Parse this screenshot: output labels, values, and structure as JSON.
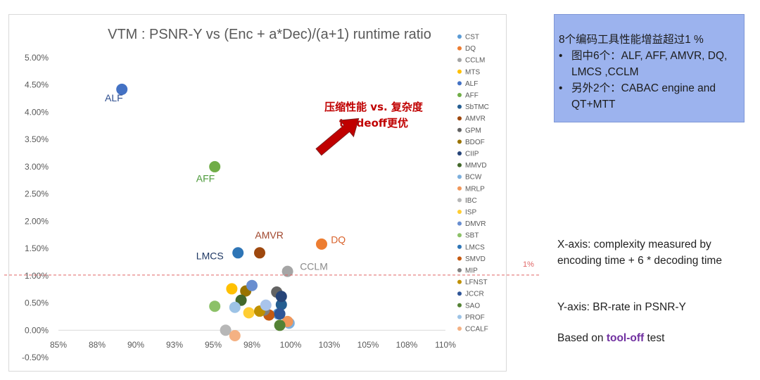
{
  "chart_data": {
    "type": "scatter",
    "title": "VTM : PSNR-Y vs (Enc + a*Dec)/(a+1) runtime ratio",
    "xlabel": "",
    "ylabel": "",
    "xlim": [
      85,
      110
    ],
    "ylim": [
      -0.5,
      5.0
    ],
    "x_ticks": [
      85,
      87.5,
      90,
      92.5,
      95,
      97.5,
      100,
      102.5,
      105,
      107.5,
      110
    ],
    "x_tick_labels": [
      "85%",
      "88%",
      "90%",
      "93%",
      "95%",
      "98%",
      "100%",
      "103%",
      "105%",
      "108%",
      "110%"
    ],
    "y_ticks": [
      -0.5,
      0,
      0.5,
      1.0,
      1.5,
      2.0,
      2.5,
      3.0,
      3.5,
      4.0,
      4.5,
      5.0
    ],
    "y_tick_labels": [
      "-0.50%",
      "0.00%",
      "0.50%",
      "1.00%",
      "1.50%",
      "2.00%",
      "2.50%",
      "3.00%",
      "3.50%",
      "4.00%",
      "4.50%",
      "5.00%"
    ],
    "grid": false,
    "legend_position": "right",
    "reference_line": {
      "y": 1.0,
      "label": "1%",
      "color": "#e06666"
    },
    "series": [
      {
        "name": "CST",
        "color": "#5b9bd5",
        "x": 99.2,
        "y": 0.3
      },
      {
        "name": "DQ",
        "color": "#ed7d31",
        "x": 102.0,
        "y": 1.58
      },
      {
        "name": "CCLM",
        "color": "#a5a5a5",
        "x": 99.8,
        "y": 1.08
      },
      {
        "name": "MTS",
        "color": "#ffc000",
        "x": 96.2,
        "y": 0.76
      },
      {
        "name": "ALF",
        "color": "#4472c4",
        "x": 89.1,
        "y": 4.42
      },
      {
        "name": "AFF",
        "color": "#70ad47",
        "x": 95.1,
        "y": 3.0
      },
      {
        "name": "SbTMC",
        "color": "#255e91",
        "x": 99.4,
        "y": 0.47
      },
      {
        "name": "AMVR",
        "color": "#9e480e",
        "x": 98.0,
        "y": 1.42
      },
      {
        "name": "GPM",
        "color": "#636363",
        "x": 99.1,
        "y": 0.7
      },
      {
        "name": "BDOF",
        "color": "#997300",
        "x": 97.1,
        "y": 0.72
      },
      {
        "name": "CIIP",
        "color": "#264478",
        "x": 99.4,
        "y": 0.62
      },
      {
        "name": "MMVD",
        "color": "#43682b",
        "x": 96.8,
        "y": 0.55
      },
      {
        "name": "BCW",
        "color": "#7cafdd",
        "x": 99.9,
        "y": 0.13
      },
      {
        "name": "MRLP",
        "color": "#f1975a",
        "x": 99.8,
        "y": 0.16
      },
      {
        "name": "IBC",
        "color": "#b7b7b7",
        "x": 95.8,
        "y": 0.0
      },
      {
        "name": "ISP",
        "color": "#ffcd33",
        "x": 97.3,
        "y": 0.32
      },
      {
        "name": "DMVR",
        "color": "#698ed0",
        "x": 97.5,
        "y": 0.82
      },
      {
        "name": "SBT",
        "color": "#8cc168",
        "x": 95.1,
        "y": 0.44
      },
      {
        "name": "LMCS",
        "color": "#2e75b6",
        "x": 96.6,
        "y": 1.42
      },
      {
        "name": "SMVD",
        "color": "#c55a11",
        "x": 98.6,
        "y": 0.28
      },
      {
        "name": "MIP",
        "color": "#7f7f7f",
        "x": 98.3,
        "y": 0.37
      },
      {
        "name": "LFNST",
        "color": "#bf9000",
        "x": 98.0,
        "y": 0.35
      },
      {
        "name": "JCCR",
        "color": "#2f5597",
        "x": 99.3,
        "y": 0.3
      },
      {
        "name": "SAO",
        "color": "#548235",
        "x": 99.3,
        "y": 0.09
      },
      {
        "name": "PROF",
        "color": "#9dc3e6",
        "x": 96.4,
        "y": 0.42
      },
      {
        "name": "CCALF",
        "color": "#f4b183",
        "x": 96.4,
        "y": -0.1
      },
      {
        "name": "",
        "color": "#a9c4eb",
        "x": 98.4,
        "y": 0.46
      }
    ],
    "point_labels": [
      {
        "text": "ALF",
        "color": "#2f4f8f",
        "x": 88.0,
        "y": 4.2
      },
      {
        "text": "AFF",
        "color": "#4c9a3a",
        "x": 93.9,
        "y": 2.72
      },
      {
        "text": "AMVR",
        "color": "#a0462c",
        "x": 97.7,
        "y": 1.68
      },
      {
        "text": "DQ",
        "color": "#d9622b",
        "x": 102.6,
        "y": 1.6
      },
      {
        "text": "LMCS",
        "color": "#1f3864",
        "x": 93.9,
        "y": 1.3
      },
      {
        "text": "CCLM",
        "color": "#8a8a8a",
        "x": 100.6,
        "y": 1.11
      }
    ],
    "annotation": {
      "line1": "压缩性能 vs. 复杂度",
      "line2": "tradeoff更优",
      "color": "#c00000"
    }
  },
  "info_box": {
    "title": "8个编码工具性能增益超过1 %",
    "bullets": [
      "图中6个：ALF, AFF, AMVR, DQ, LMCS ,CCLM",
      "另外2个：CABAC engine and QT+MTT"
    ],
    "bullet_char": "•"
  },
  "notes": {
    "x_axis": "X-axis: complexity measured by encoding time + 6 * decoding time",
    "y_axis": "Y-axis: BR-rate in PSNR-Y",
    "based_prefix": "Based on ",
    "based_highlight": "tool-off",
    "based_suffix": " test"
  }
}
